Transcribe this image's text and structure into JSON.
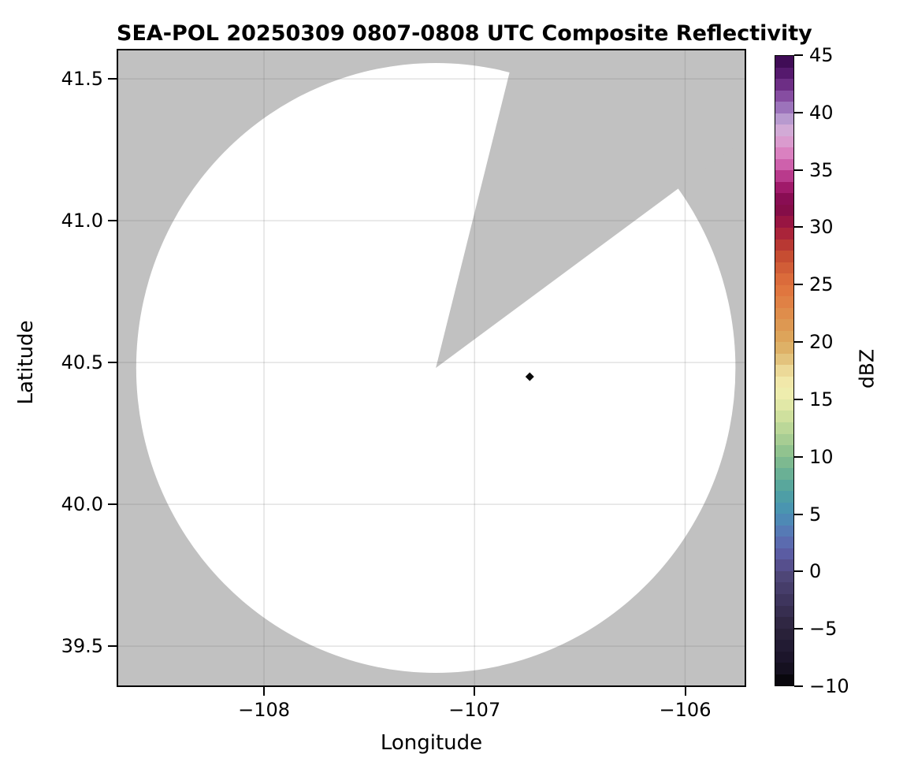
{
  "title": "SEA-POL 20250309 0807-0808 UTC Composite Reflectivity",
  "axes": {
    "xlabel": "Longitude",
    "ylabel": "Latitude",
    "xticks": [
      {
        "v": -108,
        "label": "−108"
      },
      {
        "v": -107,
        "label": "−107"
      },
      {
        "v": -106,
        "label": "−106"
      }
    ],
    "yticks": [
      {
        "v": 41.5,
        "label": "41.5"
      },
      {
        "v": 41.0,
        "label": "41.0"
      },
      {
        "v": 40.5,
        "label": "40.5"
      },
      {
        "v": 40.0,
        "label": "40.0"
      },
      {
        "v": 39.5,
        "label": "39.5"
      }
    ]
  },
  "colorbar": {
    "label": "dBZ",
    "min": -10,
    "max": 45,
    "ticks": [
      {
        "v": 45,
        "label": "45"
      },
      {
        "v": 40,
        "label": "40"
      },
      {
        "v": 35,
        "label": "35"
      },
      {
        "v": 30,
        "label": "30"
      },
      {
        "v": 25,
        "label": "25"
      },
      {
        "v": 20,
        "label": "20"
      },
      {
        "v": 15,
        "label": "15"
      },
      {
        "v": 10,
        "label": "10"
      },
      {
        "v": 5,
        "label": "5"
      },
      {
        "v": 0,
        "label": "0"
      },
      {
        "v": -5,
        "label": "−5"
      },
      {
        "v": -10,
        "label": "−10"
      }
    ]
  },
  "chart_data": {
    "type": "heatmap",
    "title": "SEA-POL 20250309 0807-0808 UTC Composite Reflectivity",
    "xlabel": "Longitude",
    "ylabel": "Latitude",
    "xlim": [
      -108.7,
      -105.71
    ],
    "ylim": [
      39.356,
      41.606
    ],
    "xticks": [
      -108,
      -107,
      -106
    ],
    "yticks": [
      39.5,
      40.0,
      40.5,
      41.0,
      41.5
    ],
    "grid": true,
    "grid_color": "rgba(110,110,110,0.2)",
    "no_data_fill": "#c1c1c1",
    "coverage_fill": "#ffffff",
    "radar_coverage": {
      "center_lon": -107.184,
      "center_lat": 40.481,
      "radius_deg_lon": 1.423,
      "radius_deg_lat": 1.075,
      "blocked_sector_azimuth_deg": [
        14.0,
        53.5
      ]
    },
    "echo_points": [
      {
        "lon": -106.738,
        "lat": 40.45,
        "dbz_approx": -10,
        "color": "#0a0a0a",
        "marker": "diamond"
      }
    ],
    "colorbar": {
      "label": "dBZ",
      "range": [
        -10,
        45
      ],
      "tick_step": 5,
      "band_step_dbz": 1,
      "colormap_name": "spectral-chase-like",
      "colormap_stops": [
        [
          -10,
          "#000000"
        ],
        [
          -9,
          "#120d1a"
        ],
        [
          -7,
          "#1f1830"
        ],
        [
          -5,
          "#2c243c"
        ],
        [
          -3,
          "#3a3156"
        ],
        [
          -1,
          "#4a4170"
        ],
        [
          0,
          "#514a7e"
        ],
        [
          1,
          "#5a549b"
        ],
        [
          2,
          "#5c63aa"
        ],
        [
          3,
          "#5a73b3"
        ],
        [
          4,
          "#5281b6"
        ],
        [
          5,
          "#4a90b4"
        ],
        [
          6,
          "#4a9aab"
        ],
        [
          7,
          "#52a2a0"
        ],
        [
          8,
          "#60ab97"
        ],
        [
          9,
          "#74b592"
        ],
        [
          10,
          "#85bd8e"
        ],
        [
          11,
          "#9dc890"
        ],
        [
          12,
          "#b1d295"
        ],
        [
          13,
          "#c5db9a"
        ],
        [
          14,
          "#d8e4a2"
        ],
        [
          15,
          "#e9ecab"
        ],
        [
          16,
          "#f2edb0"
        ],
        [
          17,
          "#f0e3a3"
        ],
        [
          18,
          "#e7cf8c"
        ],
        [
          19,
          "#dfb76e"
        ],
        [
          20,
          "#dcaa5f"
        ],
        [
          21,
          "#dd9d55"
        ],
        [
          22,
          "#dd924e"
        ],
        [
          23,
          "#e08747"
        ],
        [
          24,
          "#e07b42"
        ],
        [
          25,
          "#e0713c"
        ],
        [
          26,
          "#d66439"
        ],
        [
          27,
          "#cc5634"
        ],
        [
          28,
          "#c04330"
        ],
        [
          29,
          "#b02d36"
        ],
        [
          30,
          "#a41b3e"
        ],
        [
          31,
          "#8c0f45"
        ],
        [
          32,
          "#7e0a4a"
        ],
        [
          33,
          "#930f5c"
        ],
        [
          34,
          "#ad2578"
        ],
        [
          35,
          "#c44f9f"
        ],
        [
          36,
          "#d873b8"
        ],
        [
          37,
          "#dc8fc8"
        ],
        [
          38,
          "#d8a6d4"
        ],
        [
          39,
          "#cbaed8"
        ],
        [
          40,
          "#a586c5"
        ],
        [
          41,
          "#925fb0"
        ],
        [
          42,
          "#7a3b92"
        ],
        [
          43,
          "#5f2178"
        ],
        [
          44,
          "#4a1161"
        ],
        [
          45,
          "#36064a"
        ]
      ]
    }
  }
}
